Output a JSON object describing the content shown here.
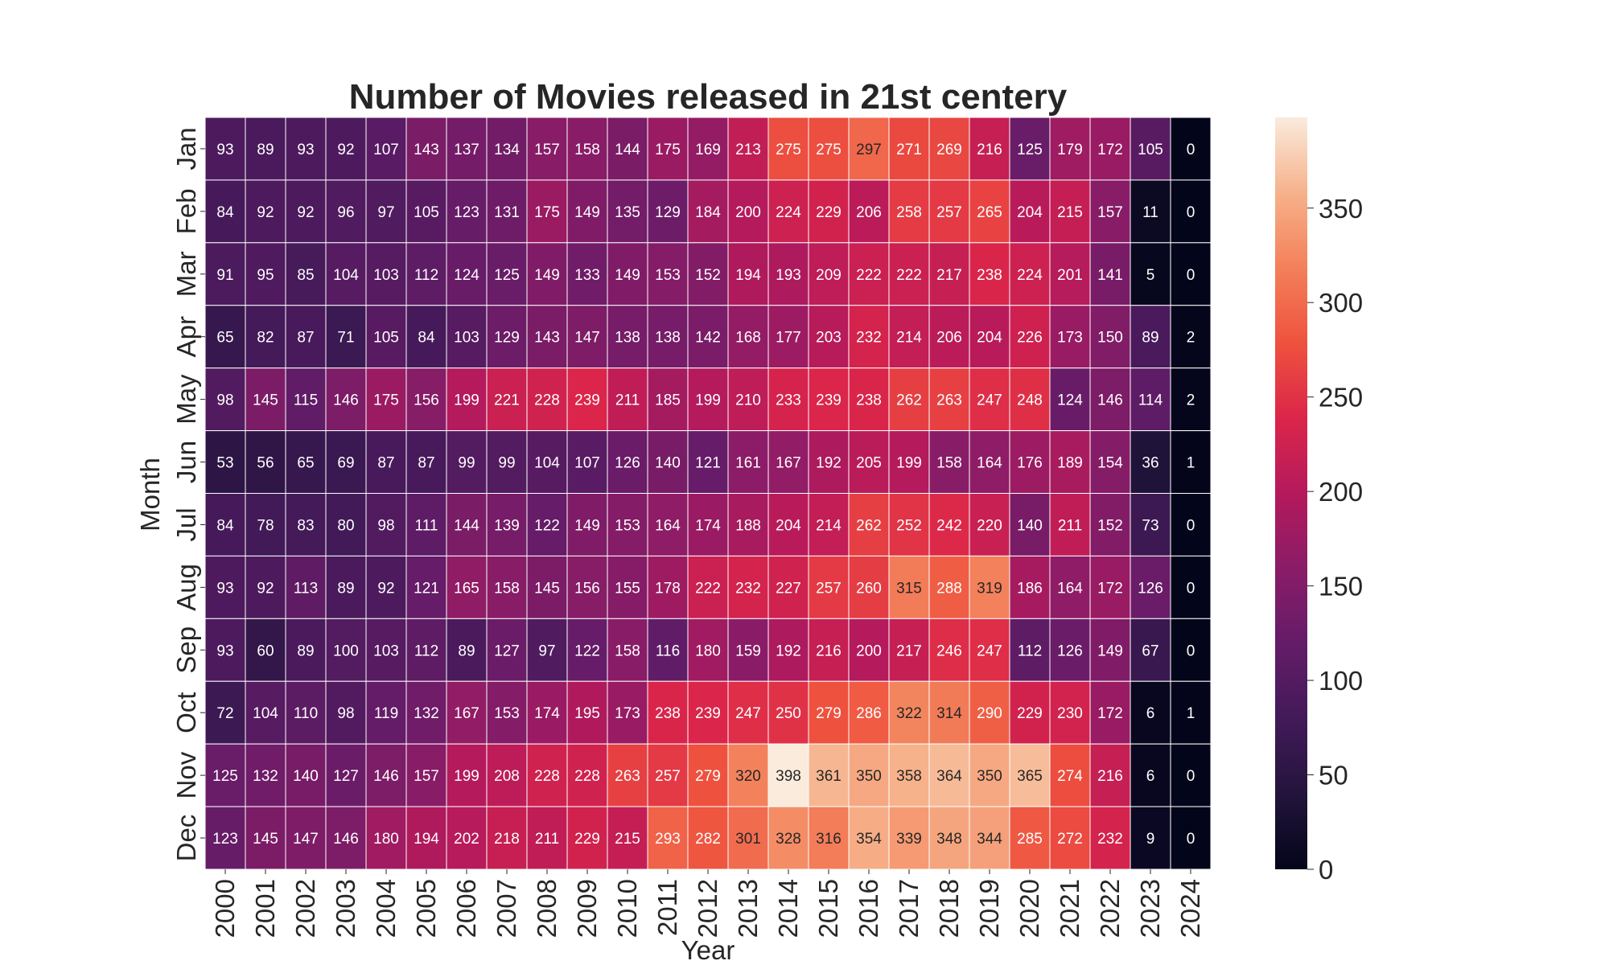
{
  "chart_data": {
    "type": "heatmap",
    "title": "Number of Movies released in 21st centery",
    "xlabel": "Year",
    "ylabel": "Month",
    "x_categories": [
      "2000",
      "2001",
      "2002",
      "2003",
      "2004",
      "2005",
      "2006",
      "2007",
      "2008",
      "2009",
      "2010",
      "2011",
      "2012",
      "2013",
      "2014",
      "2015",
      "2016",
      "2017",
      "2018",
      "2019",
      "2020",
      "2021",
      "2022",
      "2023",
      "2024"
    ],
    "y_categories": [
      "Jan",
      "Feb",
      "Mar",
      "Apr",
      "May",
      "Jun",
      "Jul",
      "Aug",
      "Sep",
      "Oct",
      "Nov",
      "Dec"
    ],
    "values": [
      [
        93,
        89,
        93,
        92,
        107,
        143,
        137,
        134,
        157,
        158,
        144,
        175,
        169,
        213,
        275,
        275,
        297,
        271,
        269,
        216,
        125,
        179,
        172,
        105,
        0
      ],
      [
        84,
        92,
        92,
        96,
        97,
        105,
        123,
        131,
        175,
        149,
        135,
        129,
        184,
        200,
        224,
        229,
        206,
        258,
        257,
        265,
        204,
        215,
        157,
        11,
        0
      ],
      [
        91,
        95,
        85,
        104,
        103,
        112,
        124,
        125,
        149,
        133,
        149,
        153,
        152,
        194,
        193,
        209,
        222,
        222,
        217,
        238,
        224,
        201,
        141,
        5,
        0
      ],
      [
        65,
        82,
        87,
        71,
        105,
        84,
        103,
        129,
        143,
        147,
        138,
        138,
        142,
        168,
        177,
        203,
        232,
        214,
        206,
        204,
        226,
        173,
        150,
        89,
        2
      ],
      [
        98,
        145,
        115,
        146,
        175,
        156,
        199,
        221,
        228,
        239,
        211,
        185,
        199,
        210,
        233,
        239,
        238,
        262,
        263,
        247,
        248,
        124,
        146,
        114,
        2
      ],
      [
        53,
        56,
        65,
        69,
        87,
        87,
        99,
        99,
        104,
        107,
        126,
        140,
        121,
        161,
        167,
        192,
        205,
        199,
        158,
        164,
        176,
        189,
        154,
        36,
        1
      ],
      [
        84,
        78,
        83,
        80,
        98,
        111,
        144,
        139,
        122,
        149,
        153,
        164,
        174,
        188,
        204,
        214,
        262,
        252,
        242,
        220,
        140,
        211,
        152,
        73,
        0
      ],
      [
        93,
        92,
        113,
        89,
        92,
        121,
        165,
        158,
        145,
        156,
        155,
        178,
        222,
        232,
        227,
        257,
        260,
        315,
        288,
        319,
        186,
        164,
        172,
        126,
        0
      ],
      [
        93,
        60,
        89,
        100,
        103,
        112,
        89,
        127,
        97,
        122,
        158,
        116,
        180,
        159,
        192,
        216,
        200,
        217,
        246,
        247,
        112,
        126,
        149,
        67,
        0
      ],
      [
        72,
        104,
        110,
        98,
        119,
        132,
        167,
        153,
        174,
        195,
        173,
        238,
        239,
        247,
        250,
        279,
        286,
        322,
        314,
        290,
        229,
        230,
        172,
        6,
        1
      ],
      [
        125,
        132,
        140,
        127,
        146,
        157,
        199,
        208,
        228,
        228,
        263,
        257,
        279,
        320,
        398,
        361,
        350,
        358,
        364,
        350,
        365,
        274,
        216,
        6,
        0
      ],
      [
        123,
        145,
        147,
        146,
        180,
        194,
        202,
        218,
        211,
        229,
        215,
        293,
        282,
        301,
        328,
        316,
        354,
        339,
        348,
        344,
        285,
        272,
        232,
        9,
        0
      ]
    ],
    "colorbar": {
      "min": 0,
      "max": 398,
      "ticks": [
        0,
        50,
        100,
        150,
        200,
        250,
        300,
        350
      ],
      "colormap": "rocket"
    },
    "grid": false,
    "annotations": "cell values shown"
  }
}
